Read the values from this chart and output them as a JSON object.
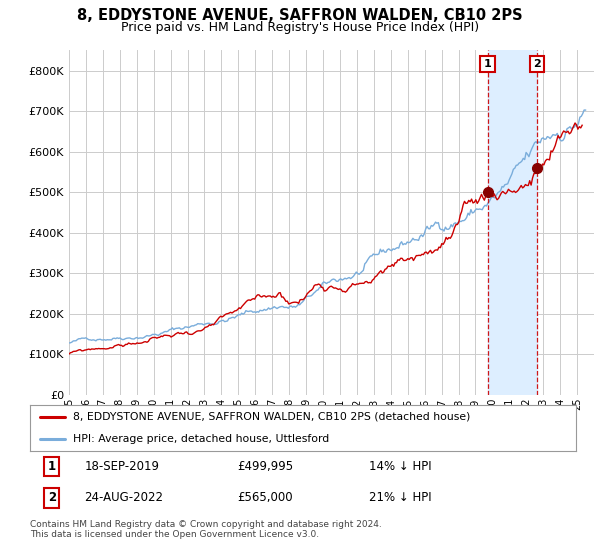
{
  "title": "8, EDDYSTONE AVENUE, SAFFRON WALDEN, CB10 2PS",
  "subtitle": "Price paid vs. HM Land Registry's House Price Index (HPI)",
  "ylim": [
    0,
    850000
  ],
  "yticks": [
    0,
    100000,
    200000,
    300000,
    400000,
    500000,
    600000,
    700000,
    800000
  ],
  "ytick_labels": [
    "£0",
    "£100K",
    "£200K",
    "£300K",
    "£400K",
    "£500K",
    "£600K",
    "£700K",
    "£800K"
  ],
  "line1_color": "#cc0000",
  "line2_color": "#7aaddb",
  "shade_color": "#ddeeff",
  "marker1_date": 2019.72,
  "marker1_price": 499995,
  "marker2_date": 2022.65,
  "marker2_price": 565000,
  "legend1": "8, EDDYSTONE AVENUE, SAFFRON WALDEN, CB10 2PS (detached house)",
  "legend2": "HPI: Average price, detached house, Uttlesford",
  "ann1_date": "18-SEP-2019",
  "ann1_price": "£499,995",
  "ann1_hpi": "14% ↓ HPI",
  "ann2_date": "24-AUG-2022",
  "ann2_price": "£565,000",
  "ann2_hpi": "21% ↓ HPI",
  "footer": "Contains HM Land Registry data © Crown copyright and database right 2024.\nThis data is licensed under the Open Government Licence v3.0.",
  "bg_color": "#ffffff",
  "grid_color": "#cccccc"
}
